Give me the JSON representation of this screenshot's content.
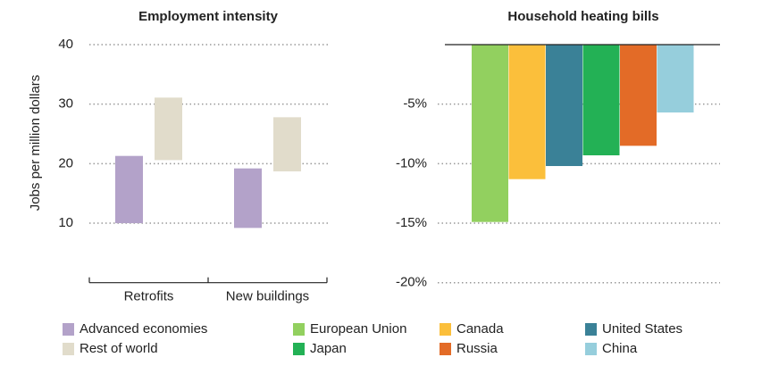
{
  "chart_data": [
    {
      "type": "range-bar",
      "title": "Employment intensity",
      "y_label": "Jobs per million dollars",
      "categories": [
        "Retrofits",
        "New buildings"
      ],
      "series": [
        {
          "name": "Advanced economies",
          "color": "#b3a2c9",
          "low": [
            10,
            9.2
          ],
          "high": [
            21.3,
            19.2
          ]
        },
        {
          "name": "Rest of world",
          "color": "#e1dccb",
          "low": [
            20.6,
            18.7
          ],
          "high": [
            31.1,
            27.8
          ]
        }
      ],
      "ylim": [
        0,
        40
      ],
      "yticks": [
        10,
        20,
        30,
        40
      ],
      "grid": true
    },
    {
      "type": "bar",
      "title": "Household heating bills",
      "series": [
        {
          "name": "European Union",
          "color": "#92d05f",
          "values": [
            -14.9
          ]
        },
        {
          "name": "Canada",
          "color": "#fbbf3b",
          "values": [
            -11.3
          ]
        },
        {
          "name": "United States",
          "color": "#3a8197",
          "values": [
            -10.2
          ]
        },
        {
          "name": "Japan",
          "color": "#23b155",
          "values": [
            -9.3
          ]
        },
        {
          "name": "Russia",
          "color": "#e36b27",
          "values": [
            -8.5
          ]
        },
        {
          "name": "China",
          "color": "#96cedc",
          "values": [
            -5.7
          ]
        }
      ],
      "ylim": [
        -20,
        0
      ],
      "yticks": [
        {
          "value": -5,
          "label": "-5%"
        },
        {
          "value": -10,
          "label": "-10%"
        },
        {
          "value": -15,
          "label": "-15%"
        },
        {
          "value": -20,
          "label": "-20%"
        }
      ],
      "grid": true
    }
  ]
}
